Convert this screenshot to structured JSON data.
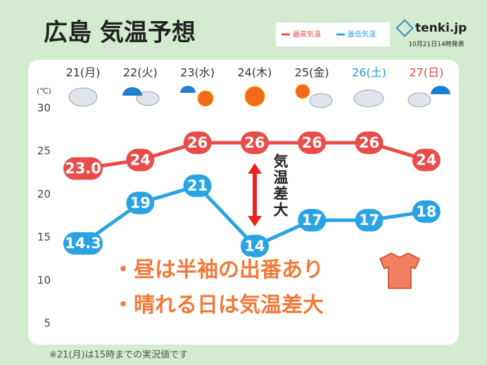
{
  "chart_data": {
    "type": "line",
    "title": "広島 気温予想",
    "source": "tenki.jp",
    "issued": "10月21日14時発表",
    "y_label": "(℃)",
    "categories": [
      "21(月)",
      "22(火)",
      "23(水)",
      "24(木)",
      "25(金)",
      "26(土)",
      "27(日)"
    ],
    "category_colors": [
      "#333333",
      "#333333",
      "#333333",
      "#333333",
      "#333333",
      "#1e9be0",
      "#e84848"
    ],
    "series": [
      {
        "name": "最高気温",
        "color": "#ea4c4c",
        "values": [
          23.0,
          24,
          26,
          26,
          26,
          26,
          24
        ],
        "value_labels": [
          "23.0",
          "24",
          "26",
          "26",
          "26",
          "26",
          "24"
        ]
      },
      {
        "name": "最低気温",
        "color": "#2aa3e2",
        "values": [
          14.3,
          19,
          21,
          14,
          17,
          17,
          18
        ]
      }
    ],
    "ylim": [
      5,
      30
    ],
    "yticks": [
      5,
      10,
      15,
      20,
      25,
      30
    ],
    "annotation": "気温差大",
    "highlights": [
      "・昼は半袖の出番あり",
      "・晴れる日は気温差大"
    ],
    "footnote": "※21(月)は15時までの実況値です"
  }
}
